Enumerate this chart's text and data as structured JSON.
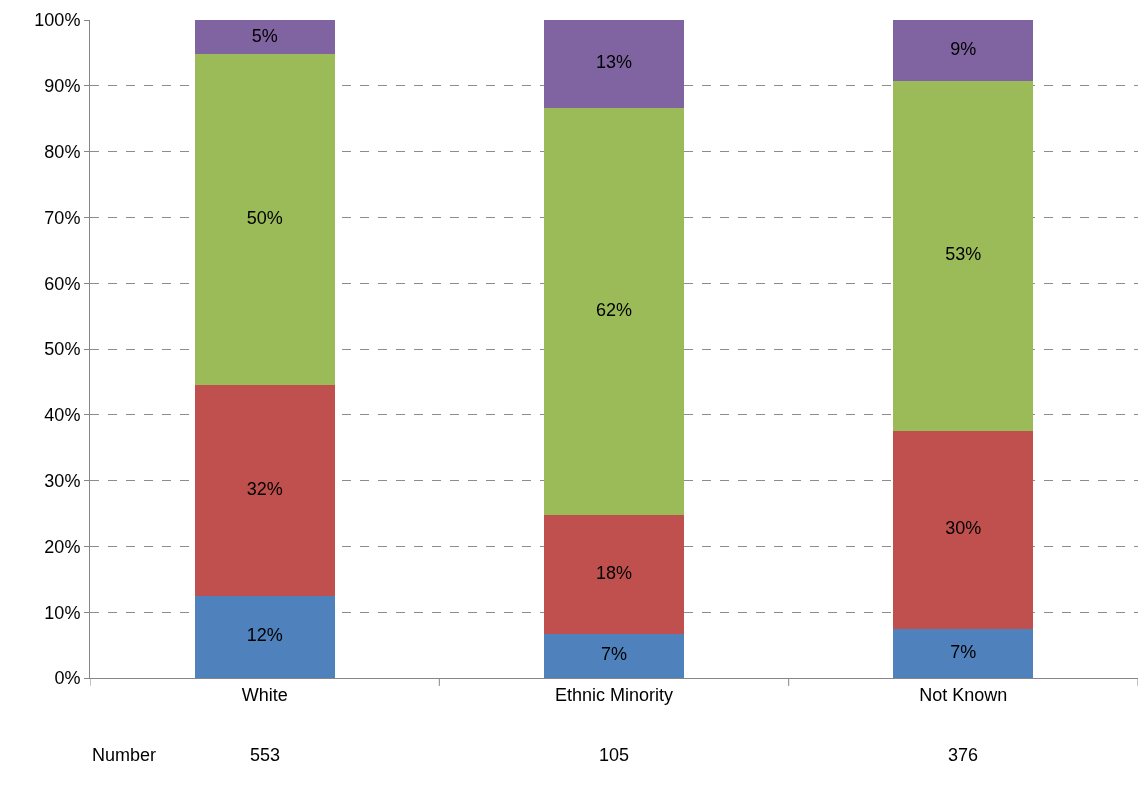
{
  "chart_data": {
    "type": "bar",
    "stacked": true,
    "categories": [
      "White",
      "Ethnic Minority",
      "Not Known"
    ],
    "series": [
      {
        "color": "#4f81bd",
        "values": [
          12.5,
          6.7,
          7.5
        ],
        "value_labels": [
          "12%",
          "7%",
          "7%"
        ]
      },
      {
        "color": "#c0504d",
        "values": [
          32.1,
          18.1,
          30.1
        ],
        "value_labels": [
          "32%",
          "18%",
          "30%"
        ]
      },
      {
        "color": "#9bbb59",
        "values": [
          50.2,
          61.9,
          53.2
        ],
        "value_labels": [
          "50%",
          "62%",
          "53%"
        ]
      },
      {
        "color": "#8064a2",
        "values": [
          5.2,
          13.3,
          9.2
        ],
        "value_labels": [
          "5%",
          "13%",
          "9%"
        ]
      }
    ],
    "ylim": [
      0,
      100
    ],
    "yticks": [
      {
        "value": 0,
        "label": "0%"
      },
      {
        "value": 10,
        "label": "10%"
      },
      {
        "value": 20,
        "label": "20%"
      },
      {
        "value": 30,
        "label": "30%"
      },
      {
        "value": 40,
        "label": "40%"
      },
      {
        "value": 50,
        "label": "50%"
      },
      {
        "value": 60,
        "label": "60%"
      },
      {
        "value": 70,
        "label": "70%"
      },
      {
        "value": 80,
        "label": "80%"
      },
      {
        "value": 90,
        "label": "90%"
      },
      {
        "value": 100,
        "label": "100%"
      }
    ],
    "grid": "y",
    "annotations": [
      "Number",
      "553",
      "105",
      "376"
    ]
  }
}
